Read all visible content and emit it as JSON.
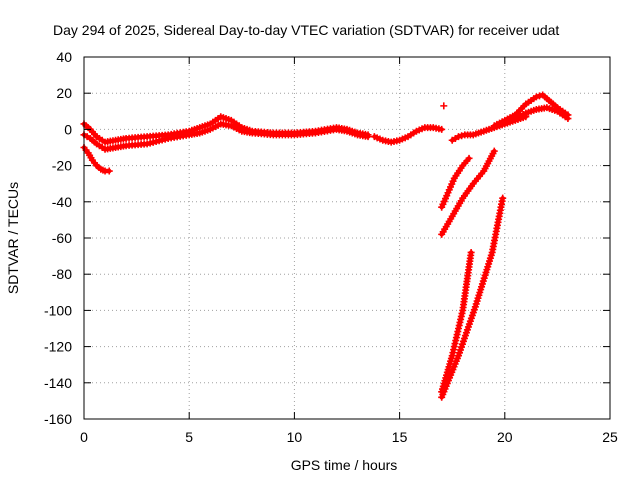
{
  "chart_data": {
    "type": "scatter",
    "title": "Day 294 of 2025, Sidereal Day-to-day VTEC variation (SDTVAR) for receiver udat",
    "xlabel": "GPS time / hours",
    "ylabel": "SDTVAR / TECUs",
    "xlim": [
      0,
      25
    ],
    "ylim": [
      -160,
      40
    ],
    "xticks": [
      0,
      5,
      10,
      15,
      20,
      25
    ],
    "xtick_labels": [
      "0",
      "5",
      "10",
      "15",
      "20",
      "25"
    ],
    "yticks": [
      -160,
      -140,
      -120,
      -100,
      -80,
      -60,
      -40,
      -20,
      0,
      20,
      40
    ],
    "ytick_labels": [
      "-160",
      "-140",
      "-120",
      "-100",
      "-80",
      "-60",
      "-40",
      "-20",
      "0",
      "20",
      "40"
    ],
    "grid": true,
    "marker": "+",
    "color": "#ff0000",
    "series": [
      {
        "name": "main-band-upper",
        "x": [
          0.0,
          0.3,
          0.6,
          1.0,
          1.5,
          2.0,
          3.0,
          4.0,
          5.0,
          5.5,
          6.0,
          6.5,
          7.0,
          7.5,
          8.0,
          9.0,
          10.0,
          11.0,
          12.0,
          12.5,
          13.0,
          13.5
        ],
        "y": [
          3,
          0,
          -4,
          -7,
          -6,
          -5,
          -4,
          -3,
          -1,
          1,
          3,
          7,
          5,
          1,
          -1,
          -2,
          -2,
          -1,
          1,
          0,
          -2,
          -3
        ]
      },
      {
        "name": "main-band-lower",
        "x": [
          0.0,
          0.3,
          0.6,
          1.0,
          1.5,
          2.0,
          3.0,
          4.0,
          5.0,
          5.5,
          6.0,
          6.5,
          7.0,
          7.5,
          8.0,
          9.0,
          10.0,
          11.0,
          12.0,
          12.5,
          13.0,
          13.5
        ],
        "y": [
          -3,
          -5,
          -8,
          -11,
          -10,
          -9,
          -8,
          -5,
          -3,
          -2,
          0,
          3,
          2,
          -1,
          -2,
          -3,
          -3,
          -2,
          0,
          -1,
          -3,
          -4
        ]
      },
      {
        "name": "early-dip",
        "x": [
          0.0,
          0.2,
          0.4,
          0.6,
          0.8,
          1.0,
          1.2
        ],
        "y": [
          -10,
          -13,
          -17,
          -20,
          -22,
          -23,
          -23
        ]
      },
      {
        "name": "mid-band",
        "x": [
          13.8,
          14.2,
          14.6,
          15.0,
          15.4,
          15.8,
          16.2,
          16.6,
          17.0
        ],
        "y": [
          -4,
          -6,
          -7,
          -6,
          -4,
          -1,
          1,
          1,
          0
        ]
      },
      {
        "name": "isolated-point",
        "x": [
          17.1
        ],
        "y": [
          13
        ]
      },
      {
        "name": "late-band-low",
        "x": [
          17.5,
          17.8,
          18.1,
          18.5,
          19.0,
          19.5,
          20.0,
          20.5,
          21.0
        ],
        "y": [
          -6,
          -4,
          -3,
          -3,
          -1,
          1,
          3,
          5,
          7
        ]
      },
      {
        "name": "late-band-high",
        "x": [
          19.5,
          20.0,
          20.5,
          21.0,
          21.5,
          21.8,
          22.0,
          22.5,
          23.0
        ],
        "y": [
          2,
          5,
          8,
          14,
          18,
          19,
          17,
          12,
          8
        ]
      },
      {
        "name": "late-band-mid",
        "x": [
          20.0,
          20.5,
          21.0,
          21.5,
          22.0,
          22.5,
          23.0
        ],
        "y": [
          4,
          6,
          9,
          11,
          12,
          10,
          6
        ]
      },
      {
        "name": "descending-arc-1",
        "x": [
          17.0,
          17.3,
          17.6,
          18.0,
          18.3
        ],
        "y": [
          -43,
          -35,
          -27,
          -20,
          -16
        ]
      },
      {
        "name": "descending-arc-2",
        "x": [
          17.0,
          17.5,
          18.0,
          18.5,
          19.0,
          19.5
        ],
        "y": [
          -58,
          -48,
          -38,
          -30,
          -23,
          -12
        ]
      },
      {
        "name": "steep-line-1",
        "x": [
          17.0,
          17.5,
          18.0,
          18.4
        ],
        "y": [
          -145,
          -125,
          -100,
          -68
        ]
      },
      {
        "name": "steep-line-2",
        "x": [
          17.0,
          17.8,
          18.6,
          19.4,
          19.9
        ],
        "y": [
          -148,
          -125,
          -98,
          -68,
          -38
        ]
      }
    ]
  }
}
